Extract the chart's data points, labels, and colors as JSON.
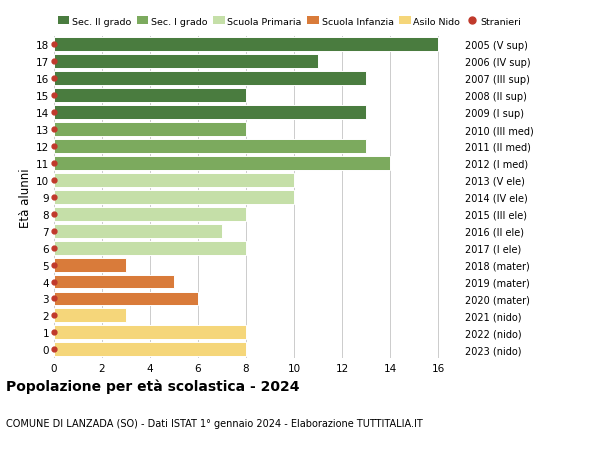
{
  "ages": [
    18,
    17,
    16,
    15,
    14,
    13,
    12,
    11,
    10,
    9,
    8,
    7,
    6,
    5,
    4,
    3,
    2,
    1,
    0
  ],
  "right_labels": [
    "2005 (V sup)",
    "2006 (IV sup)",
    "2007 (III sup)",
    "2008 (II sup)",
    "2009 (I sup)",
    "2010 (III med)",
    "2011 (II med)",
    "2012 (I med)",
    "2013 (V ele)",
    "2014 (IV ele)",
    "2015 (III ele)",
    "2016 (II ele)",
    "2017 (I ele)",
    "2018 (mater)",
    "2019 (mater)",
    "2020 (mater)",
    "2021 (nido)",
    "2022 (nido)",
    "2023 (nido)"
  ],
  "values": [
    16,
    11,
    13,
    8,
    13,
    8,
    13,
    14,
    10,
    10,
    8,
    7,
    8,
    3,
    5,
    6,
    3,
    8,
    8
  ],
  "colors": [
    "#4a7c3f",
    "#4a7c3f",
    "#4a7c3f",
    "#4a7c3f",
    "#4a7c3f",
    "#7caa5e",
    "#7caa5e",
    "#7caa5e",
    "#c5dfa8",
    "#c5dfa8",
    "#c5dfa8",
    "#c5dfa8",
    "#c5dfa8",
    "#d97b3a",
    "#d97b3a",
    "#d97b3a",
    "#f5d67a",
    "#f5d67a",
    "#f5d67a"
  ],
  "legend_labels": [
    "Sec. II grado",
    "Sec. I grado",
    "Scuola Primaria",
    "Scuola Infanzia",
    "Asilo Nido",
    "Stranieri"
  ],
  "legend_colors": [
    "#4a7c3f",
    "#7caa5e",
    "#c5dfa8",
    "#d97b3a",
    "#f5d67a",
    "#c0392b"
  ],
  "ylabel": "Età alunni",
  "title": "Popolazione per età scolastica - 2024",
  "subtitle": "COMUNE DI LANZADA (SO) - Dati ISTAT 1° gennaio 2024 - Elaborazione TUTTITALIA.IT",
  "xlim": [
    0,
    17
  ],
  "xticks": [
    0,
    2,
    4,
    6,
    8,
    10,
    12,
    14,
    16
  ],
  "background_color": "#ffffff",
  "grid_color": "#cccccc",
  "bar_edge_color": "#ffffff",
  "stranieri_color": "#c0392b",
  "bar_height": 0.82
}
